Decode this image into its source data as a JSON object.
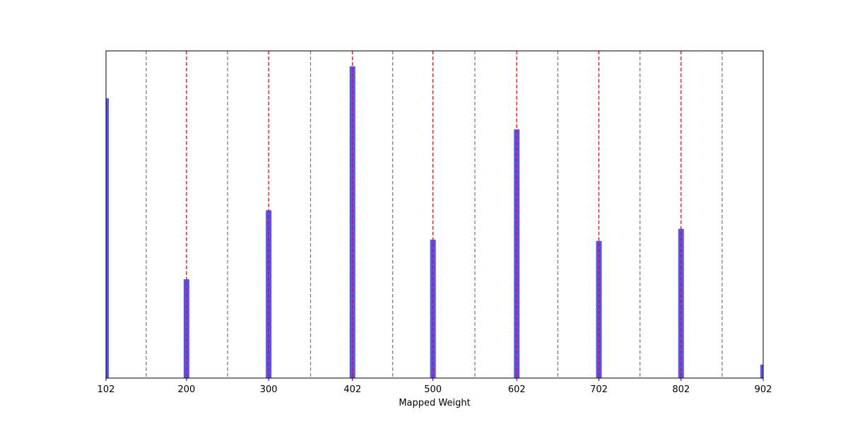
{
  "chart_data": {
    "type": "bar",
    "title": "",
    "xlabel": "Mapped Weight",
    "ylabel": "",
    "xlim": [
      102,
      902
    ],
    "ylim": [
      0,
      1
    ],
    "y_ticks_visible": false,
    "x_ticks": [
      102,
      200,
      300,
      402,
      500,
      602,
      702,
      802,
      902
    ],
    "x_tick_labels": [
      "102",
      "200",
      "300",
      "402",
      "500",
      "602",
      "702",
      "802",
      "902"
    ],
    "bars": [
      {
        "x": 102,
        "value": 0.855
      },
      {
        "x": 200,
        "value": 0.302
      },
      {
        "x": 300,
        "value": 0.513
      },
      {
        "x": 402,
        "value": 0.953
      },
      {
        "x": 500,
        "value": 0.423
      },
      {
        "x": 602,
        "value": 0.76
      },
      {
        "x": 702,
        "value": 0.419
      },
      {
        "x": 802,
        "value": 0.456
      },
      {
        "x": 902,
        "value": 0.041
      }
    ],
    "red_dashed_lines": [
      200,
      300,
      402,
      500,
      602,
      702,
      802
    ],
    "gray_dashed_lines": [
      151,
      250,
      351,
      451,
      551,
      652,
      752,
      852
    ],
    "colors": {
      "bars": "#4a4af5",
      "red_lines": "#ff0000",
      "gray_lines": "#808080"
    }
  }
}
